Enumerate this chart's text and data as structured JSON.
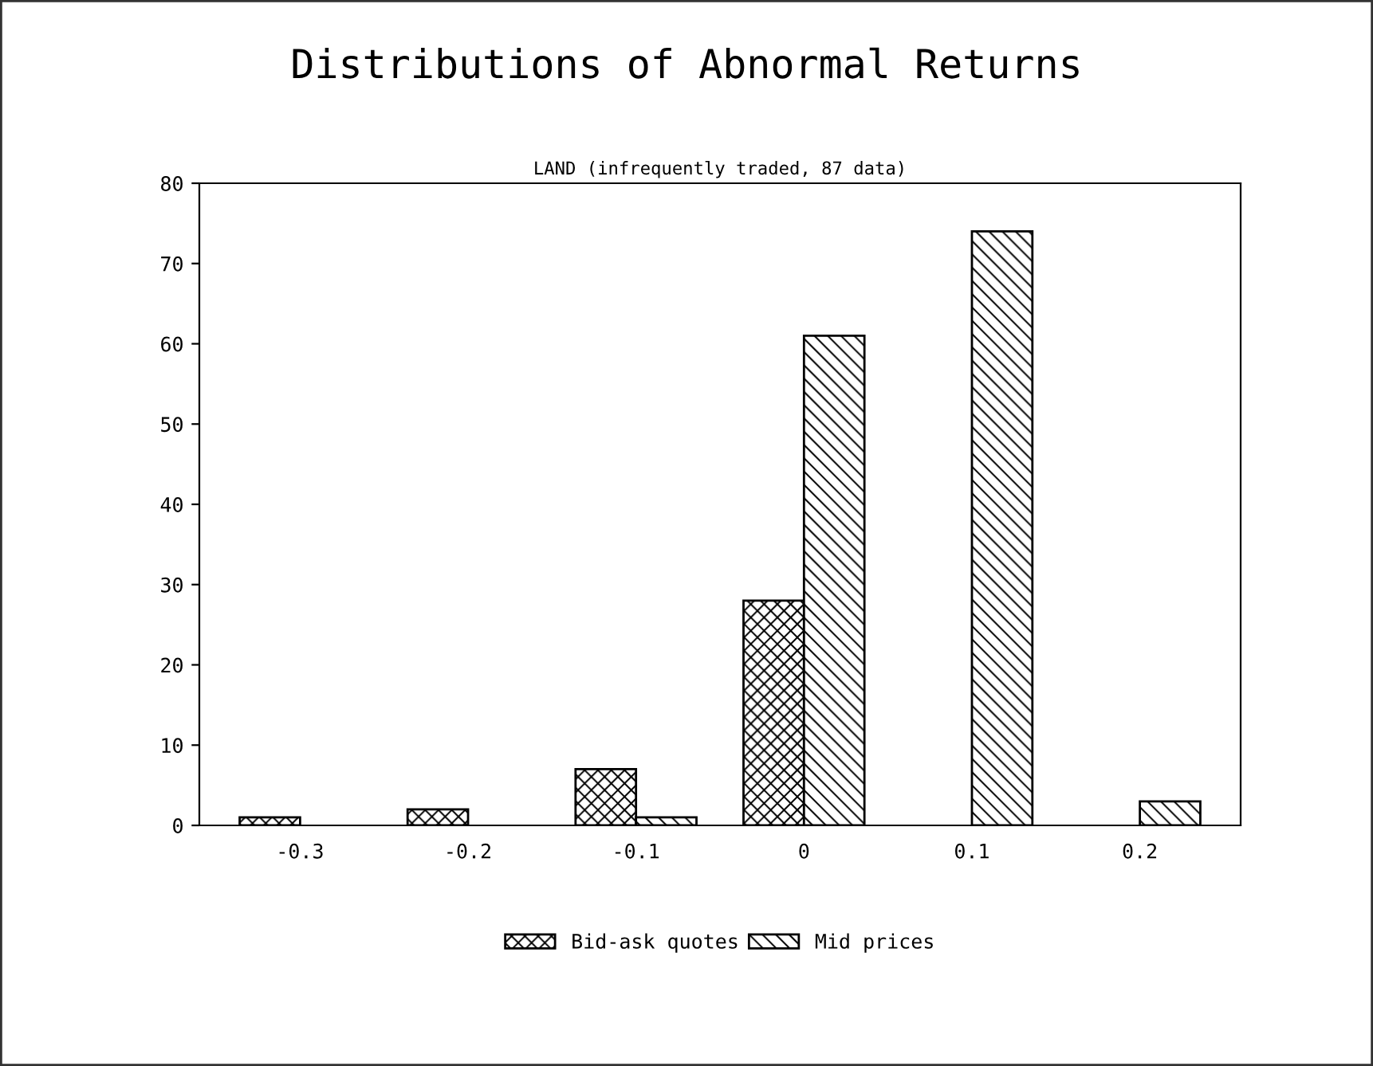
{
  "chart_data": {
    "type": "bar",
    "title": "Distributions of Abnormal Returns",
    "subtitle": "LAND (infrequently traded, 87 data)",
    "categories": [
      "-0.3",
      "-0.2",
      "-0.1",
      "0",
      "0.1",
      "0.2"
    ],
    "series": [
      {
        "name": "Bid-ask quotes",
        "color": "#000000",
        "values": [
          1,
          2,
          7,
          28,
          0,
          0
        ]
      },
      {
        "name": "Mid prices",
        "color": "#000000",
        "values": [
          0,
          0,
          1,
          61,
          74,
          3
        ]
      }
    ],
    "ylim": [
      0,
      80
    ],
    "yticks": [
      0,
      10,
      20,
      30,
      40,
      50,
      60,
      70,
      80
    ],
    "grid": false,
    "legend": "bottom"
  }
}
